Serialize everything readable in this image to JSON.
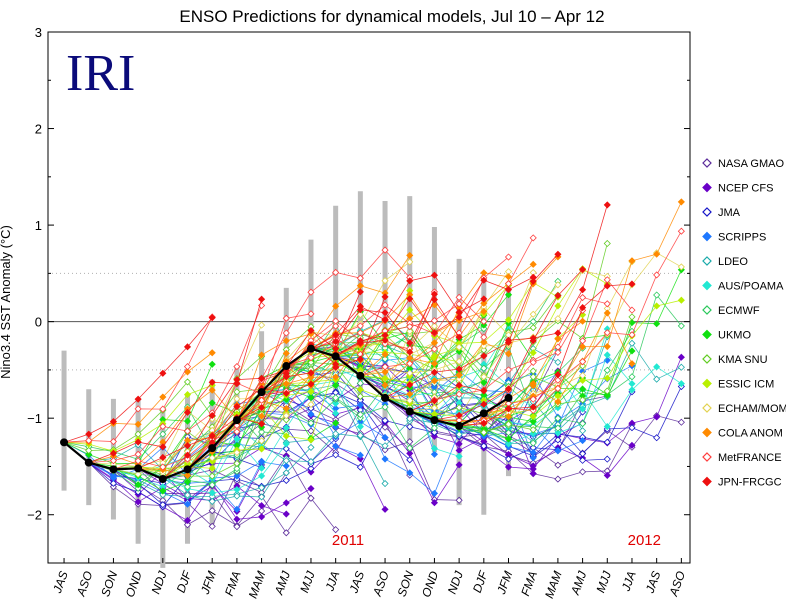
{
  "chart_data": {
    "type": "line",
    "title": "ENSO Predictions for dynamical models, Jul 10 – Apr 12",
    "ylabel": "Nino3.4 SST Anomaly (°C)",
    "logo_text": "IRI",
    "ylim": [
      -2.5,
      3
    ],
    "yticks": [
      3,
      2,
      1,
      0,
      -1,
      -2
    ],
    "ytick_labels": [
      "3",
      "2",
      "1",
      "0",
      "−1",
      "−2"
    ],
    "dotted_lines": [
      0.5,
      -0.5
    ],
    "zero_line": 0,
    "categories": [
      "JAS",
      "ASO",
      "SON",
      "OND",
      "NDJ",
      "DJF",
      "JFM",
      "FMA",
      "MAM",
      "AMJ",
      "MJJ",
      "JJA",
      "JAS",
      "ASO",
      "SON",
      "OND",
      "NDJ",
      "DJF",
      "JFM",
      "FMA",
      "MAM",
      "AMJ",
      "MJJ",
      "JJA",
      "JAS",
      "ASO"
    ],
    "year_labels": [
      {
        "text": "2011",
        "index": 11.5
      },
      {
        "text": "2012",
        "index": 23.5
      }
    ],
    "observed": {
      "x": [
        0,
        1,
        2,
        3,
        4,
        5,
        6,
        7,
        8,
        9,
        10,
        11,
        12,
        13,
        14,
        15,
        16,
        17,
        18
      ],
      "values": [
        -1.25,
        -1.46,
        -1.53,
        -1.52,
        -1.63,
        -1.53,
        -1.31,
        -1.02,
        -0.73,
        -0.46,
        -0.28,
        -0.36,
        -0.56,
        -0.79,
        -0.93,
        -1.02,
        -1.08,
        -0.95,
        -0.79
      ],
      "color": "#000000"
    },
    "spread": {
      "x": [
        0,
        1,
        2,
        3,
        4,
        5,
        6,
        7,
        8,
        9,
        10,
        11,
        12,
        13,
        14,
        15,
        16,
        17,
        18
      ],
      "low": [
        -1.75,
        -1.9,
        -2.05,
        -2.3,
        -2.55,
        -2.3,
        -2.1,
        -1.75,
        -1.25,
        -0.95,
        -0.75,
        -0.75,
        -0.95,
        -1.1,
        -1.25,
        -1.35,
        -1.9,
        -2.0,
        -1.6
      ],
      "high": [
        -0.3,
        -0.7,
        -0.8,
        -0.8,
        -0.9,
        -0.75,
        -0.6,
        -0.45,
        -0.1,
        0.35,
        0.85,
        1.2,
        1.35,
        1.25,
        1.3,
        0.98,
        0.65,
        0.48,
        0.4
      ],
      "color": "#bcbcbc"
    },
    "series": [
      {
        "name": "NASA GMAO",
        "color": "#5a2a9a",
        "marker": "open-diamond"
      },
      {
        "name": "NCEP CFS",
        "color": "#6a00c8",
        "marker": "filled-diamond"
      },
      {
        "name": "JMA",
        "color": "#1414c8",
        "marker": "open-diamond"
      },
      {
        "name": "SCRIPPS",
        "color": "#1e78ff",
        "marker": "filled-diamond"
      },
      {
        "name": "LDEO",
        "color": "#19aaaa",
        "marker": "open-diamond"
      },
      {
        "name": "AUS/POAMA",
        "color": "#22e8d2",
        "marker": "filled-diamond"
      },
      {
        "name": "ECMWF",
        "color": "#28c85a",
        "marker": "open-diamond"
      },
      {
        "name": "UKMO",
        "color": "#10e010",
        "marker": "filled-diamond"
      },
      {
        "name": "KMA SNU",
        "color": "#60cc20",
        "marker": "open-diamond"
      },
      {
        "name": "ESSIC ICM",
        "color": "#b8f000",
        "marker": "filled-diamond"
      },
      {
        "name": "ECHAM/MOM",
        "color": "#e2d250",
        "marker": "open-diamond"
      },
      {
        "name": "COLA ANOM",
        "color": "#ff8a00",
        "marker": "filled-diamond"
      },
      {
        "name": "MetFRANCE",
        "color": "#ff3c3c",
        "marker": "open-diamond"
      },
      {
        "name": "JPN-FRCGC",
        "color": "#ee1010",
        "marker": "filled-diamond"
      }
    ],
    "legend_position": "right",
    "grid": false
  }
}
